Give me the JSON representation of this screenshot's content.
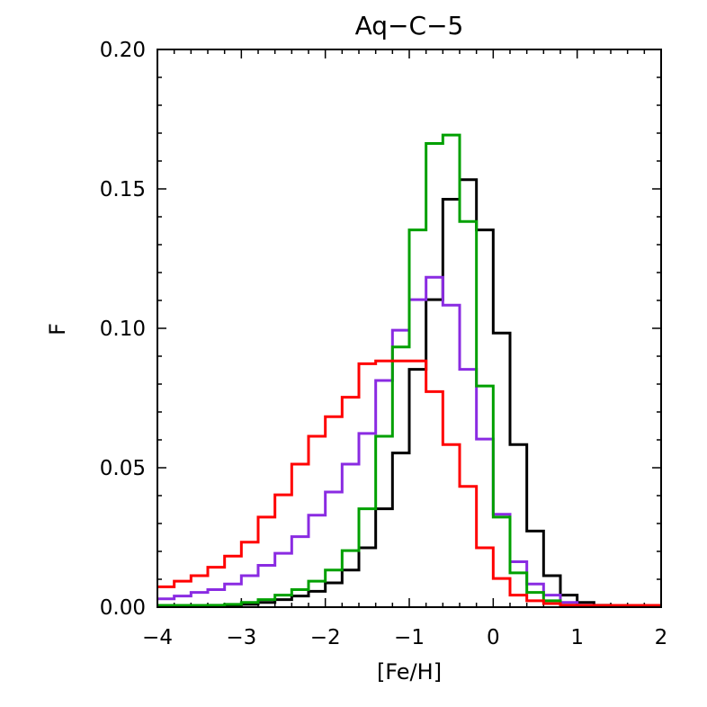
{
  "chart_data": {
    "type": "line",
    "style": "step-histogram",
    "title": "Aq−C−5",
    "xlabel": "[Fe/H]",
    "ylabel": "F",
    "xlim": [
      -4,
      2
    ],
    "ylim": [
      0,
      0.2
    ],
    "x_ticks": [
      -4,
      -3,
      -2,
      -1,
      0,
      1,
      2
    ],
    "x_tick_labels": [
      "−4",
      "−3",
      "−2",
      "−1",
      "0",
      "1",
      "2"
    ],
    "y_ticks": [
      0,
      0.05,
      0.1,
      0.15,
      0.2
    ],
    "y_tick_labels": [
      "0.00",
      "0.05",
      "0.10",
      "0.15",
      "0.20"
    ],
    "bin_edges": [
      -4.0,
      -3.8,
      -3.6,
      -3.4,
      -3.2,
      -3.0,
      -2.8,
      -2.6,
      -2.4,
      -2.2,
      -2.0,
      -1.8,
      -1.6,
      -1.4,
      -1.2,
      -1.0,
      -0.8,
      -0.6,
      -0.4,
      -0.2,
      0.0,
      0.2,
      0.4,
      0.6,
      0.8,
      1.0,
      1.2,
      1.4,
      1.6,
      1.8,
      2.0
    ],
    "series": [
      {
        "name": "black",
        "color": "#000000",
        "values": [
          0.0,
          0.0,
          0.0,
          0.0003,
          0.0007,
          0.001,
          0.0017,
          0.0027,
          0.004,
          0.0057,
          0.0087,
          0.0133,
          0.0213,
          0.0353,
          0.0553,
          0.0853,
          0.1103,
          0.1463,
          0.1533,
          0.1353,
          0.0983,
          0.0583,
          0.0273,
          0.0113,
          0.0043,
          0.0017,
          0.0007,
          0.0003,
          0.0,
          0.0
        ]
      },
      {
        "name": "purple",
        "color": "#8a2be2",
        "values": [
          0.003,
          0.004,
          0.0053,
          0.0063,
          0.0083,
          0.0113,
          0.015,
          0.0193,
          0.0253,
          0.033,
          0.0413,
          0.0513,
          0.0623,
          0.0813,
          0.0993,
          0.1103,
          0.1183,
          0.1083,
          0.0853,
          0.0603,
          0.0333,
          0.0163,
          0.0083,
          0.0043,
          0.0017,
          0.0007,
          0.0003,
          0.0,
          0.0,
          0.0
        ]
      },
      {
        "name": "green",
        "color": "#00a000",
        "values": [
          0.0,
          0.0,
          0.0003,
          0.0007,
          0.001,
          0.0017,
          0.0027,
          0.0043,
          0.0063,
          0.0093,
          0.0133,
          0.0203,
          0.0353,
          0.0613,
          0.0933,
          0.1353,
          0.1663,
          0.1693,
          0.1383,
          0.0793,
          0.0323,
          0.0123,
          0.0053,
          0.0023,
          0.0007,
          0.0003,
          0.0,
          0.0,
          0.0,
          0.0
        ]
      },
      {
        "name": "red",
        "color": "#ff0000",
        "values": [
          0.0073,
          0.0093,
          0.0113,
          0.0143,
          0.0183,
          0.0233,
          0.0323,
          0.0403,
          0.0513,
          0.0613,
          0.0683,
          0.0753,
          0.0873,
          0.0883,
          0.0883,
          0.0883,
          0.0773,
          0.0583,
          0.0433,
          0.0213,
          0.0103,
          0.0043,
          0.0023,
          0.0013,
          0.0007,
          0.0003,
          0.0003,
          0.0002,
          0.0002,
          0.0002
        ]
      }
    ],
    "grid": false,
    "legend": "none"
  }
}
